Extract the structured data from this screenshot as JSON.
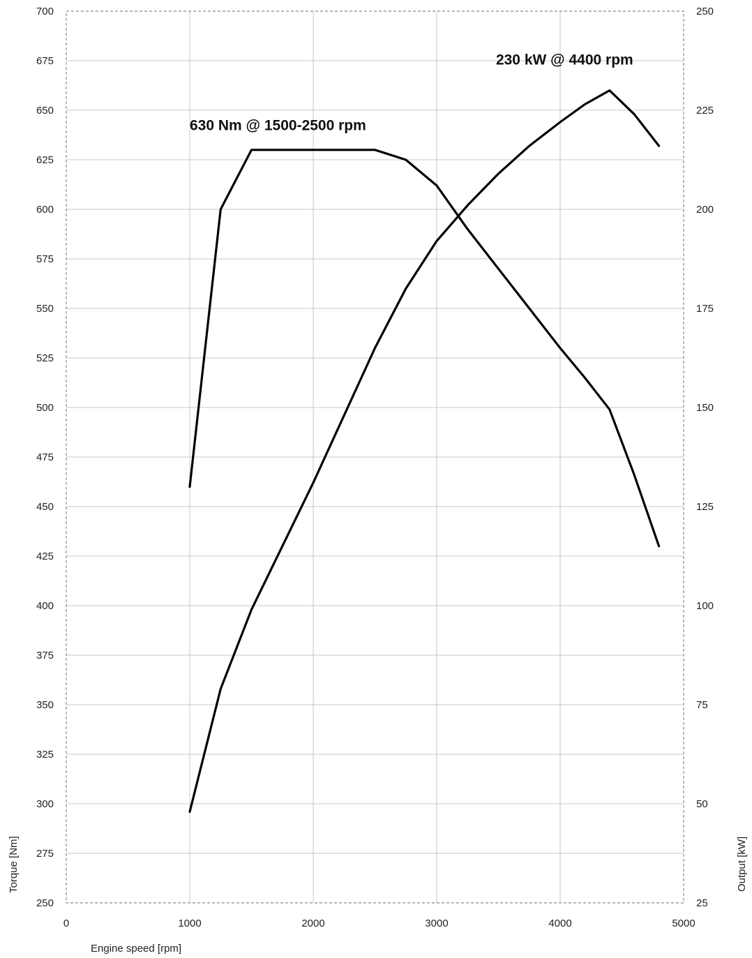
{
  "chart_data": {
    "type": "line",
    "xlabel": "Engine speed [rpm]",
    "ylabel_left": "Torque [Nm]",
    "ylabel_right": "Output [kW]",
    "xlim": [
      0,
      5000
    ],
    "ylim_left": [
      250,
      700
    ],
    "ylim_right": [
      25,
      250
    ],
    "x_ticks": [
      0,
      1000,
      2000,
      3000,
      4000,
      5000
    ],
    "y_left_ticks": [
      250,
      275,
      300,
      325,
      350,
      375,
      400,
      425,
      450,
      475,
      500,
      525,
      550,
      575,
      600,
      625,
      650,
      675,
      700
    ],
    "y_right_ticks": [
      25,
      50,
      75,
      100,
      125,
      150,
      175,
      200,
      225,
      250
    ],
    "grid": true,
    "series": [
      {
        "axis": "left",
        "x": [
          1000,
          1250,
          1500,
          2000,
          2500,
          2750,
          3000,
          3250,
          3500,
          3750,
          4000,
          4200,
          4400,
          4600,
          4800
        ],
        "values": [
          460,
          600,
          630,
          630,
          630,
          625,
          612,
          590,
          570,
          550,
          530,
          515,
          499,
          466,
          430
        ]
      },
      {
        "axis": "right",
        "x": [
          1000,
          1250,
          1500,
          2000,
          2500,
          2750,
          3000,
          3250,
          3500,
          3750,
          4000,
          4200,
          4400,
          4600,
          4800
        ],
        "values": [
          48,
          79,
          99,
          131,
          165,
          180,
          192,
          201,
          209,
          216,
          222,
          226.5,
          230,
          224,
          216
        ]
      }
    ],
    "annotations": [
      {
        "text": "630 Nm @ 1500-2500 rpm",
        "x": 1000,
        "y": 640,
        "axis": "left"
      },
      {
        "text": "230 kW @ 4400 rpm",
        "x": 3480,
        "y": 236.5,
        "axis": "right"
      }
    ]
  }
}
